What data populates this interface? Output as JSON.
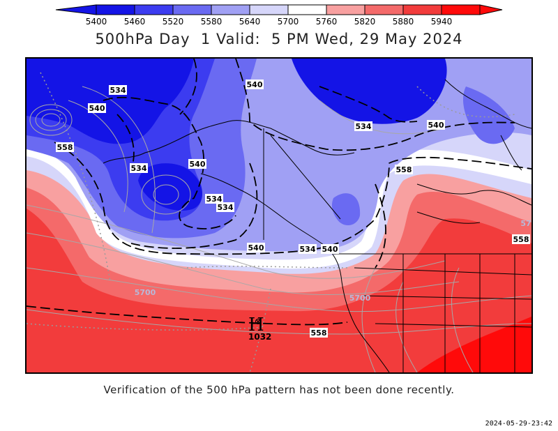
{
  "title": "500hPa Day  1 Valid:  5 PM Wed, 29 May 2024",
  "legend": {
    "values": [
      "5400",
      "5460",
      "5520",
      "5580",
      "5640",
      "5700",
      "5760",
      "5820",
      "5880",
      "5940"
    ],
    "colors": [
      "#1414e6",
      "#3c3cf0",
      "#6a6af2",
      "#a0a0f4",
      "#d6d6fa",
      "#ffffff",
      "#f8a0a0",
      "#f46a6a",
      "#f23c3c",
      "#ff0a0a"
    ]
  },
  "contour_labels": {
    "l1": "534",
    "l2": "540",
    "l3": "540",
    "l4": "534",
    "l5": "540",
    "l6": "558",
    "l7": "534",
    "l8": "540",
    "l9": "534",
    "l10": "534",
    "l11": "558",
    "l12": "540",
    "l13": "534",
    "l14": "540",
    "l15": "558",
    "l16": "5700",
    "l17": "5700",
    "l18": "558",
    "l19": "57"
  },
  "high": {
    "symbol": "H",
    "pressure": "1032"
  },
  "note": "Verification of the 500 hPa pattern has not been done recently.",
  "timestamp": "2024-05-29-23:42"
}
